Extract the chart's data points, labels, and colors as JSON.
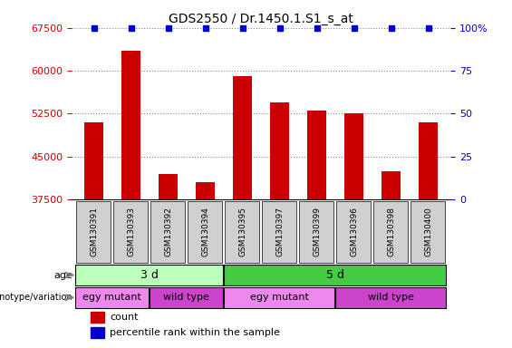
{
  "title": "GDS2550 / Dr.1450.1.S1_s_at",
  "samples": [
    "GSM130391",
    "GSM130393",
    "GSM130392",
    "GSM130394",
    "GSM130395",
    "GSM130397",
    "GSM130399",
    "GSM130396",
    "GSM130398",
    "GSM130400"
  ],
  "counts": [
    51000,
    63500,
    42000,
    40500,
    59000,
    54500,
    53000,
    52500,
    42500,
    51000
  ],
  "ylim_left": [
    37500,
    67500
  ],
  "ylim_right": [
    0,
    100
  ],
  "yticks_left": [
    37500,
    45000,
    52500,
    60000,
    67500
  ],
  "yticks_right": [
    0,
    25,
    50,
    75,
    100
  ],
  "bar_color": "#cc0000",
  "dot_color": "#0000cc",
  "age_groups": [
    {
      "text": "3 d",
      "start": 0,
      "end": 4,
      "color": "#bbffbb"
    },
    {
      "text": "5 d",
      "start": 4,
      "end": 10,
      "color": "#44cc44"
    }
  ],
  "genotype_groups": [
    {
      "text": "egy mutant",
      "start": 0,
      "end": 2,
      "color": "#ee88ee"
    },
    {
      "text": "wild type",
      "start": 2,
      "end": 4,
      "color": "#cc44cc"
    },
    {
      "text": "egy mutant",
      "start": 4,
      "end": 7,
      "color": "#ee88ee"
    },
    {
      "text": "wild type",
      "start": 7,
      "end": 10,
      "color": "#cc44cc"
    }
  ],
  "bar_width": 0.5,
  "background_color": "#ffffff",
  "grid_color": "#888888",
  "label_color_left": "#cc0000",
  "label_color_right": "#0000cc",
  "sample_box_color": "#d0d0d0"
}
